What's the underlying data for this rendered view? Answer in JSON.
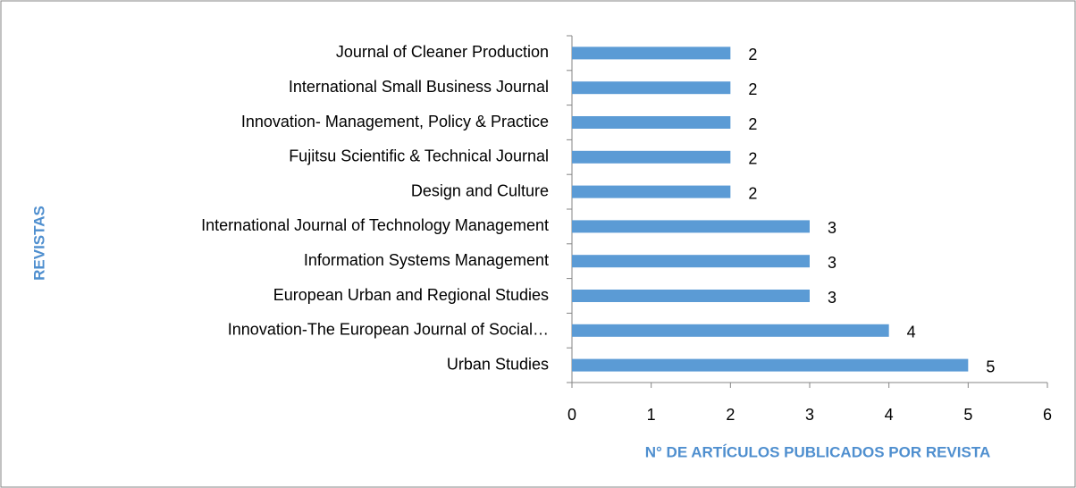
{
  "chart_data": {
    "type": "hbar",
    "categories": [
      "Journal of Cleaner Production",
      "International Small Business Journal",
      "Innovation- Management, Policy & Practice",
      "Fujitsu Scientific & Technical Journal",
      "Design and Culture",
      "International Journal of Technology Management",
      "Information Systems Management",
      "European Urban and Regional Studies",
      "Innovation-The European Journal of Social…",
      "Urban Studies"
    ],
    "values": [
      2,
      2,
      2,
      2,
      2,
      3,
      3,
      3,
      4,
      5
    ],
    "color": "#5b9bd5",
    "xlabel": "N° DE ARTÍCULOS PUBLICADOS POR REVISTA",
    "ylabel": "REVISTAS",
    "xlim": [
      0,
      6
    ],
    "xticks": [
      0,
      1,
      2,
      3,
      4,
      5,
      6
    ],
    "grid": false
  }
}
